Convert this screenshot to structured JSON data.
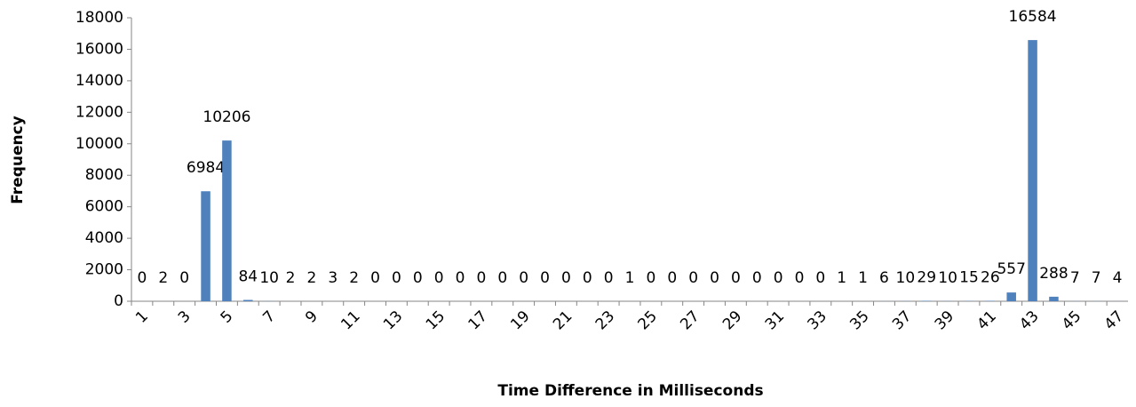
{
  "chart_data": {
    "type": "bar",
    "x_label": "Time Difference in Milliseconds",
    "y_label": "Frequency",
    "categories": [
      "1",
      null,
      "3",
      null,
      "5",
      null,
      "7",
      null,
      "9",
      null,
      "11",
      null,
      "13",
      null,
      "15",
      null,
      "17",
      null,
      "19",
      null,
      "21",
      null,
      "23",
      null,
      "25",
      null,
      "27",
      null,
      "29",
      null,
      "31",
      null,
      "33",
      null,
      "35",
      null,
      "37",
      null,
      "39",
      null,
      "41",
      null,
      "43",
      null,
      "45",
      null,
      "47"
    ],
    "values": [
      0,
      2,
      0,
      6984,
      10206,
      84,
      10,
      2,
      2,
      3,
      2,
      0,
      0,
      0,
      0,
      0,
      0,
      0,
      0,
      0,
      0,
      0,
      0,
      1,
      0,
      0,
      0,
      0,
      0,
      0,
      0,
      0,
      0,
      1,
      1,
      6,
      10,
      29,
      10,
      15,
      26,
      557,
      16584,
      288,
      7,
      7,
      4
    ],
    "color": "#4f81bd",
    "ylim": [
      0,
      18000
    ],
    "yticks": [
      0,
      2000,
      4000,
      6000,
      8000,
      10000,
      12000,
      14000,
      16000,
      18000
    ],
    "grid": false
  }
}
